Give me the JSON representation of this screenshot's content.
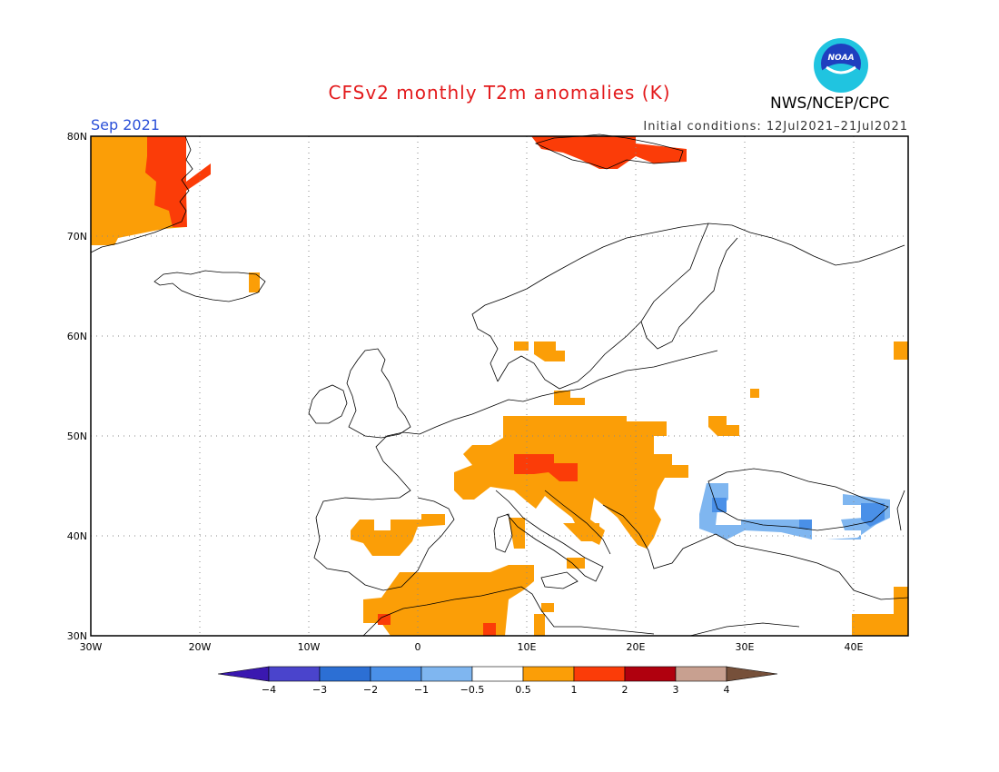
{
  "header": {
    "title": "CFSv2 monthly T2m anomalies (K)",
    "period": "Sep 2021",
    "initial_conditions": "Initial conditions: 12Jul2021–21Jul2021",
    "agency": "NWS/NCEP/CPC",
    "logo_text": "NOAA"
  },
  "map": {
    "lon_range": [
      -30,
      45
    ],
    "lat_range": [
      30,
      80
    ],
    "lon_ticks": [
      "30W",
      "20W",
      "10W",
      "0",
      "10E",
      "20E",
      "30E",
      "40E"
    ],
    "lat_ticks": [
      "80N",
      "70N",
      "60N",
      "50N",
      "40N",
      "30N"
    ],
    "grid": true
  },
  "colorbar": {
    "labels": [
      "−4",
      "−3",
      "−2",
      "−1",
      "−0.5",
      "0.5",
      "1",
      "2",
      "3",
      "4"
    ],
    "colors": [
      "#3a18b0",
      "#4a44cc",
      "#2c6fd4",
      "#4a90e8",
      "#7fb6f0",
      "#ffffff",
      "#fb9e07",
      "#fb3c08",
      "#b0000e",
      "#c8a090",
      "#76503a"
    ]
  },
  "colors": {
    "anomaly_05_1": "#fb9e07",
    "anomaly_1_2": "#fb3c08",
    "anomaly_neg_05_1": "#7fb6f0",
    "anomaly_neg_1_2": "#4a90e8",
    "title_red": "#e31a1c",
    "period_blue": "#2b50d8"
  }
}
